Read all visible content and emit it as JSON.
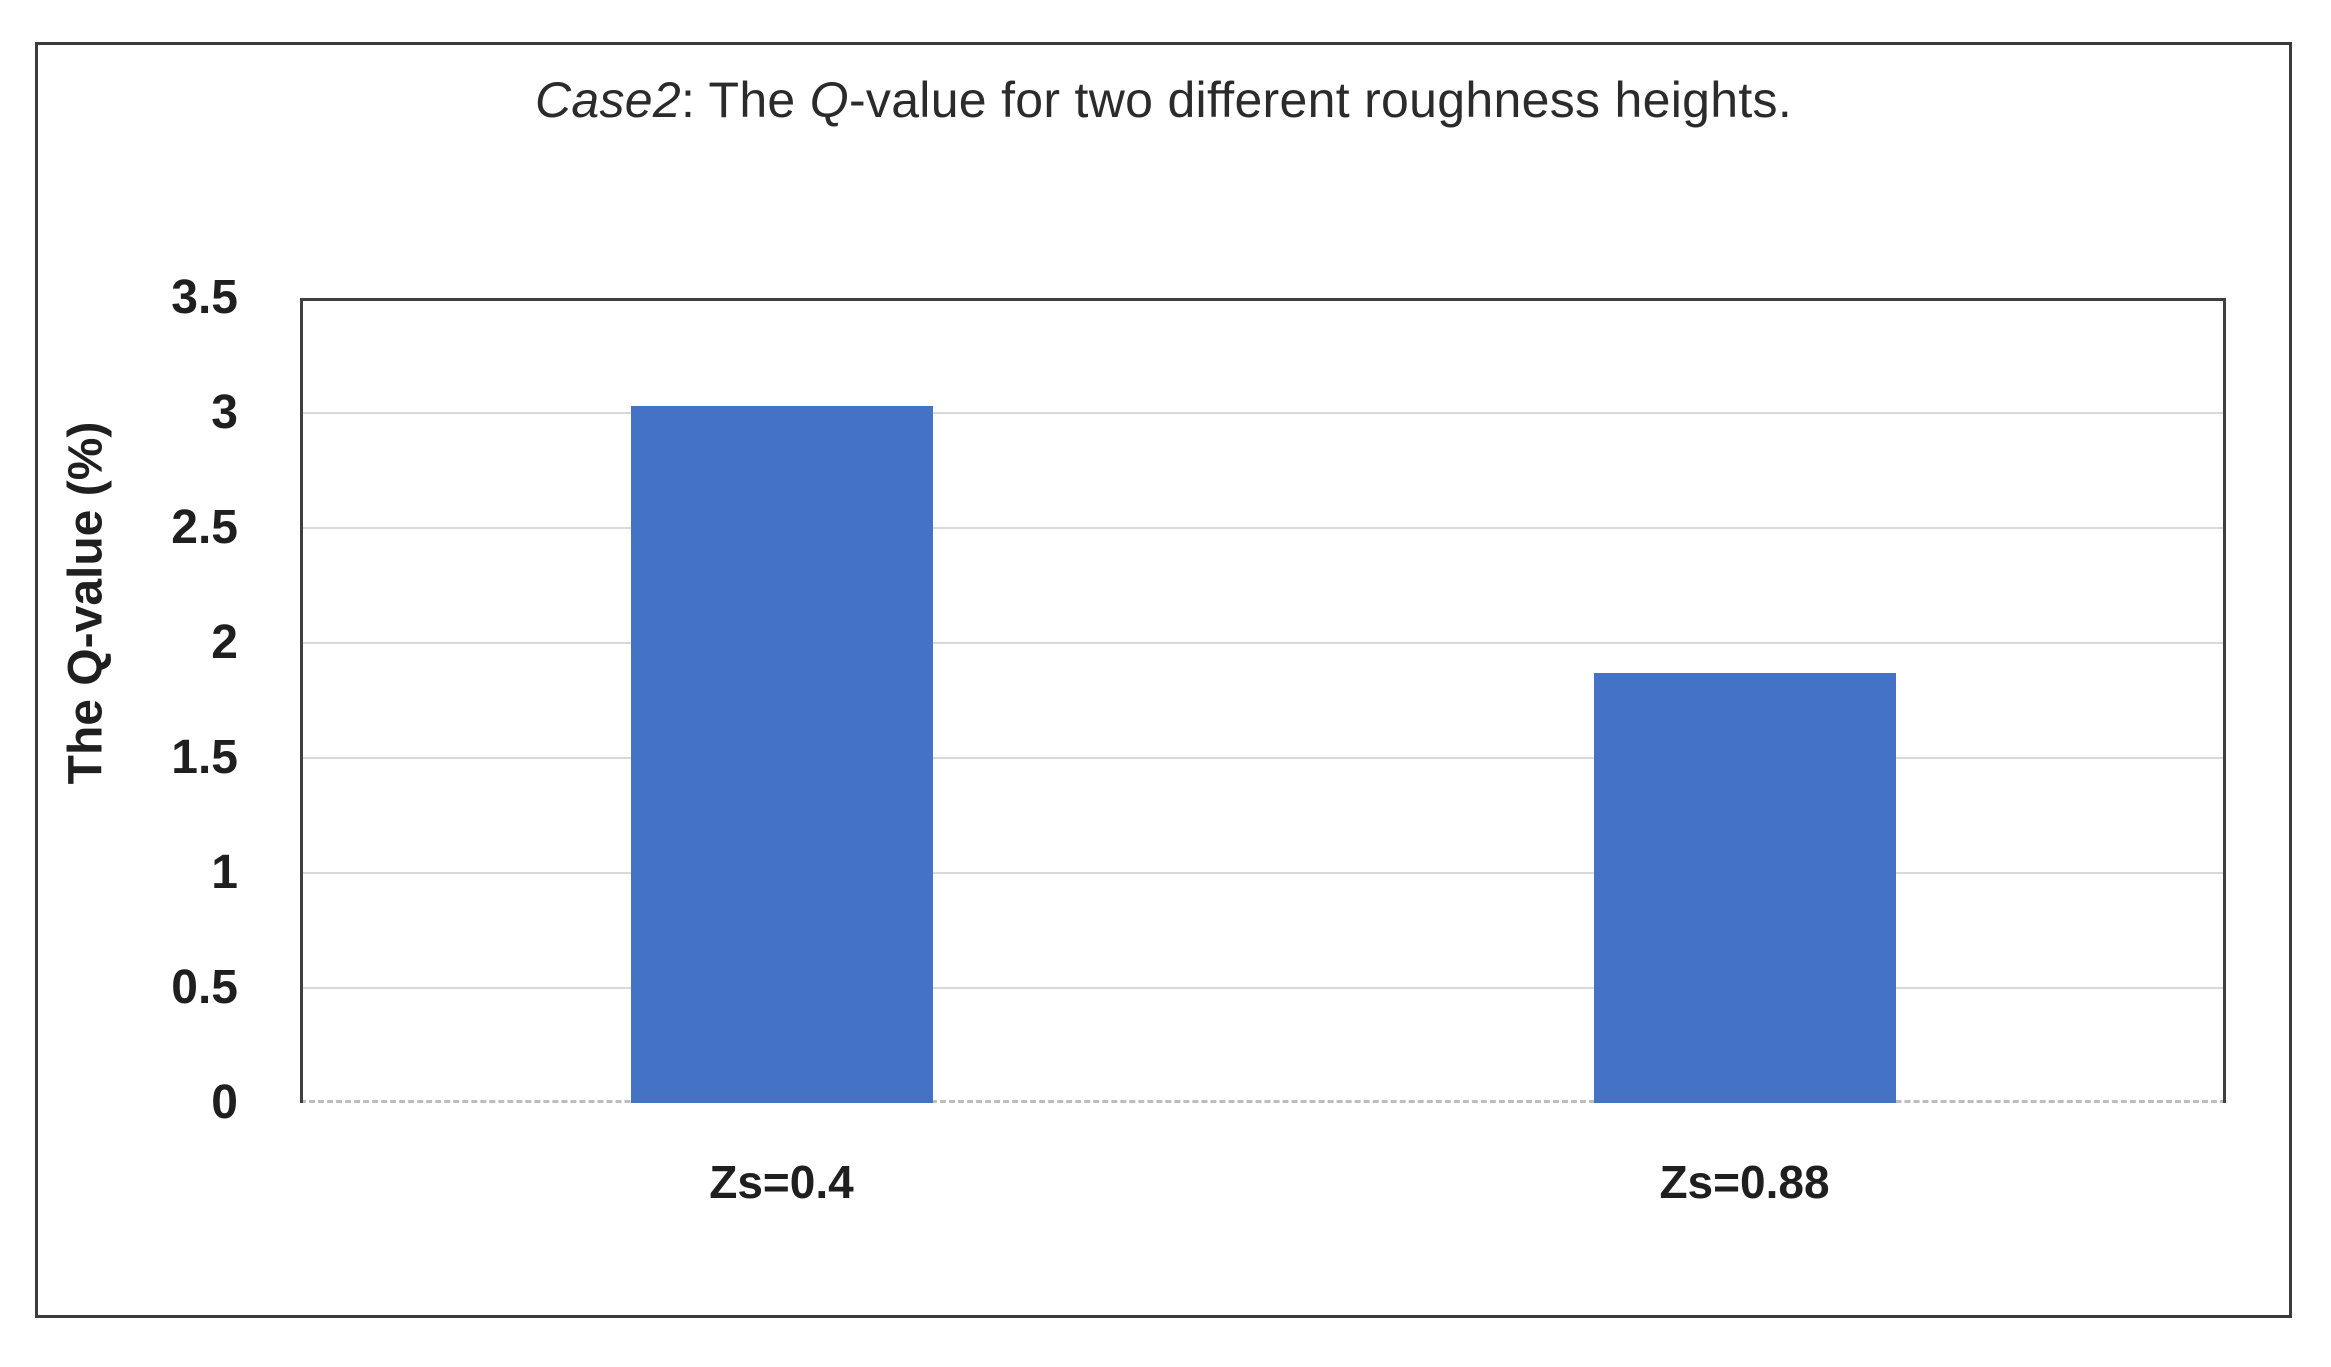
{
  "chart_data": {
    "type": "bar",
    "title_text": "Case2: The Q-value for two different roughness heights.",
    "title_segments": [
      {
        "text": "Case2",
        "italic": true
      },
      {
        "text": ": The ",
        "italic": false
      },
      {
        "text": "Q",
        "italic": true
      },
      {
        "text": "-value for two different roughness heights.",
        "italic": false
      }
    ],
    "categories": [
      "Zs=0.4",
      "Zs=0.88"
    ],
    "values": [
      3.03,
      1.87
    ],
    "xlabel": "",
    "ylabel": "The Q-value (%)",
    "ylim": [
      0,
      3.5
    ],
    "yticks": [
      "3.5",
      "3",
      "2.5",
      "2",
      "1.5",
      "1",
      "0.5",
      "0"
    ],
    "grid": true,
    "legend": "none",
    "colors": {
      "bar": "#4472C4",
      "gridline": "#d9d9d9",
      "plot_border": "#3f3f3f",
      "baseline": "#bdbdbd",
      "figure_border": "#3b3b3b",
      "text": "#1f1f1f"
    }
  }
}
